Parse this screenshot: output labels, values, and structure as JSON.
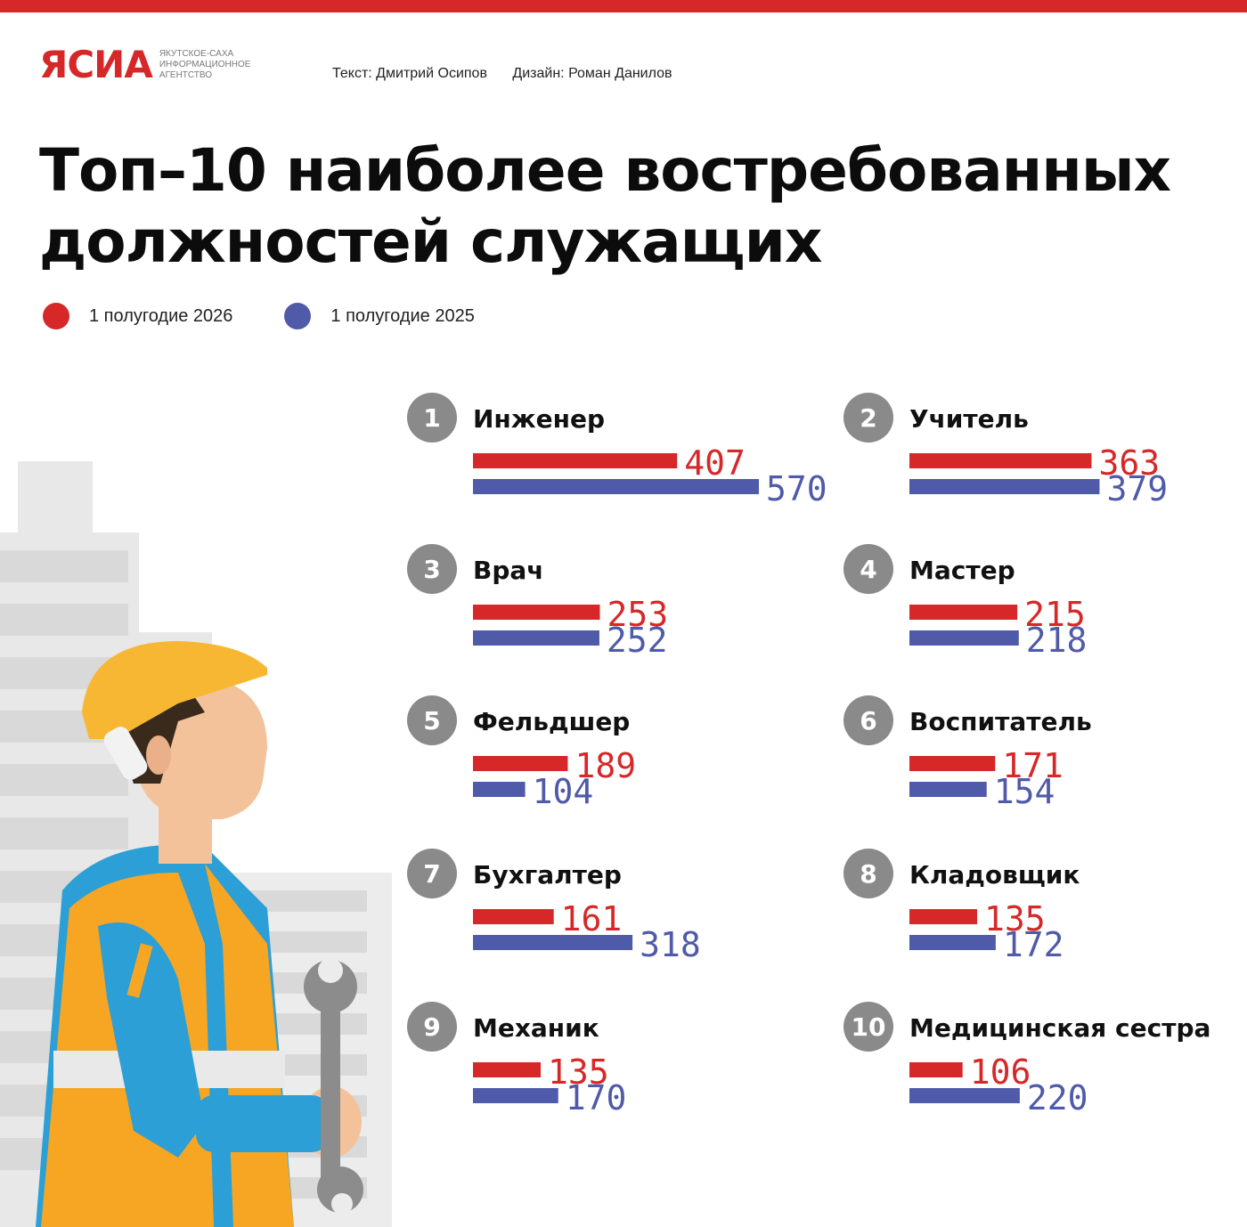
{
  "header": {
    "logo_text": "ЯСИА",
    "logo_sub": [
      "Якутское-Саха",
      "Информационное",
      "Агентство"
    ],
    "credit_text": "Текст: Дмитрий Осипов",
    "credit_design": "Дизайн: Роман Данилов"
  },
  "title_line1": "Топ–10 наиболее востребованных",
  "title_line2": "должностей служащих",
  "legend": [
    {
      "label": "1 полугодие 2026",
      "color": "#d62828"
    },
    {
      "label": "1 полугодие 2025",
      "color": "#4f5aa8"
    }
  ],
  "chart_data": {
    "type": "bar",
    "orientation": "horizontal",
    "categories": [
      "Инженер",
      "Учитель",
      "Врач",
      "Мастер",
      "Фельдшер",
      "Воспитатель",
      "Бухгалтер",
      "Кладовщик",
      "Механик",
      "Медицинская сестра"
    ],
    "ranks": [
      "1",
      "2",
      "3",
      "4",
      "5",
      "6",
      "7",
      "8",
      "9",
      "10"
    ],
    "series": [
      {
        "name": "1 полугодие 2026",
        "color": "#d62828",
        "values": [
          407,
          363,
          253,
          215,
          189,
          171,
          161,
          135,
          135,
          106
        ]
      },
      {
        "name": "1 полугодие 2025",
        "color": "#4f5aa8",
        "values": [
          570,
          379,
          252,
          218,
          104,
          154,
          318,
          172,
          170,
          220
        ]
      }
    ],
    "value_labels": [
      [
        "407",
        "363",
        "253",
        "215",
        "189",
        "171",
        "161",
        "135",
        "135",
        "106"
      ],
      [
        "570",
        "379",
        "252",
        "218",
        "104",
        "154",
        "318",
        "172",
        "170",
        "220"
      ]
    ]
  }
}
